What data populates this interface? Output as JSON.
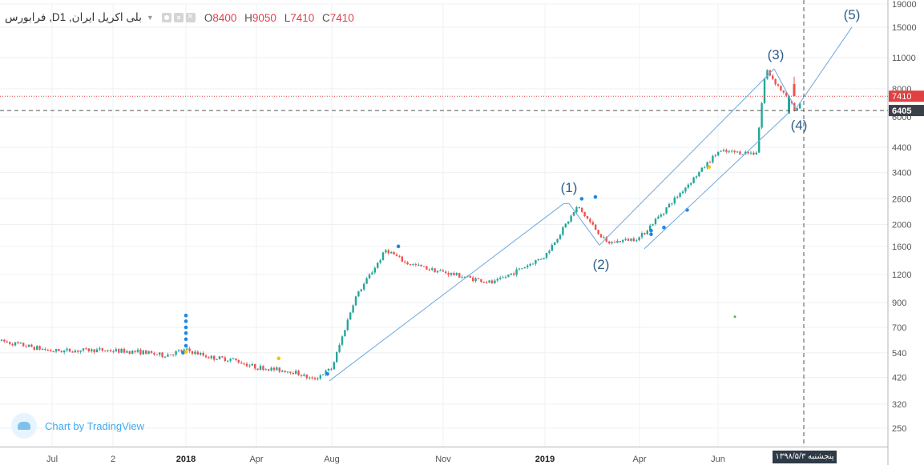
{
  "header": {
    "symbol": "فرابورس ,Dبلی اکریل ایران, 1",
    "dropdown_icon": "chevron-down-icon",
    "ohlc": [
      {
        "label": "O",
        "value": "8400"
      },
      {
        "label": "H",
        "value": "9050"
      },
      {
        "label": "L",
        "value": "7410"
      },
      {
        "label": "C",
        "value": "7410"
      }
    ]
  },
  "branding": {
    "text": "Chart by TradingView",
    "icon": "tradingview-cloud-icon"
  },
  "crosshair_date_label": "پنجشنبه ۱۳۹۸/۵/۳",
  "colors": {
    "up_candle": "#26a69a",
    "down_candle": "#ef5350",
    "trend_lines": "#6fa8dc",
    "wave_labels": "#2e5d8a",
    "last_price_line": "#e04040",
    "axis_text": "#555555",
    "date_label_bg": "#2f3a47",
    "indicator_dot": "#1e88e5",
    "indicator_dot_alt": "#f4c20d"
  },
  "chart_data": {
    "type": "candlestick",
    "title": "",
    "y_scale": "log",
    "ylim": [
      230,
      19000
    ],
    "x_ticks": [
      "Jul",
      "2",
      "2018",
      "Apr",
      "Aug",
      "Nov",
      "2019",
      "Apr",
      "Jun"
    ],
    "x_ticks_bold": [
      "2018",
      "2019"
    ],
    "y_ticks": [
      250,
      320,
      420,
      540,
      700,
      900,
      1200,
      1600,
      2000,
      2600,
      3400,
      4400,
      6000,
      8000,
      11000,
      15000,
      19000
    ],
    "price_labels": [
      {
        "value": 7410,
        "style": "last"
      },
      {
        "value": 6405,
        "style": "crosshair"
      }
    ],
    "wave_labels": [
      {
        "label": "(1)",
        "date": "2019-02",
        "value": 2560
      },
      {
        "label": "(2)",
        "date": "2019-03",
        "value": 1540
      },
      {
        "label": "(3)",
        "date": "2019-07",
        "value": 9900
      },
      {
        "label": "(4)",
        "date": "2019-07-25",
        "value": 6200
      },
      {
        "label": "(5)",
        "date": "2019-09",
        "value": 15000
      }
    ],
    "price_path": [
      {
        "date": "2017-06",
        "value": 610
      },
      {
        "date": "2017-07",
        "value": 550
      },
      {
        "date": "2017-09",
        "value": 555
      },
      {
        "date": "2017-11",
        "value": 545
      },
      {
        "date": "2017-12",
        "value": 525
      },
      {
        "date": "2018-01",
        "value": 555
      },
      {
        "date": "2018-02",
        "value": 515
      },
      {
        "date": "2018-03",
        "value": 505
      },
      {
        "date": "2018-04",
        "value": 465
      },
      {
        "date": "2018-06",
        "value": 445
      },
      {
        "date": "2018-07",
        "value": 410
      },
      {
        "date": "2018-08",
        "value": 460
      },
      {
        "date": "2018-08-20",
        "value": 940
      },
      {
        "date": "2018-09-15",
        "value": 1550
      },
      {
        "date": "2018-10",
        "value": 1350
      },
      {
        "date": "2018-11",
        "value": 1230
      },
      {
        "date": "2018-12",
        "value": 1100
      },
      {
        "date": "2019-01",
        "value": 1450
      },
      {
        "date": "2019-02",
        "value": 2400
      },
      {
        "date": "2019-03",
        "value": 1650
      },
      {
        "date": "2019-04",
        "value": 1750
      },
      {
        "date": "2019-05",
        "value": 2700
      },
      {
        "date": "2019-06",
        "value": 4200
      },
      {
        "date": "2019-06-25",
        "value": 4150
      },
      {
        "date": "2019-07",
        "value": 9800
      },
      {
        "date": "2019-07-20",
        "value": 6405
      },
      {
        "date": "2019-07-25",
        "value": 7410
      }
    ]
  }
}
